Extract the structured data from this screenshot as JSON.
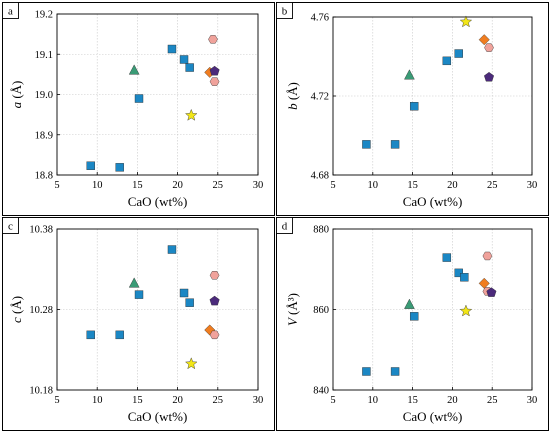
{
  "chart_data": [
    {
      "panel": "a",
      "type": "scatter",
      "xlabel": "CaO (wt%)",
      "ylabel_italic": "a",
      "ylabel_unit": "(Å)",
      "xlim": [
        5,
        30
      ],
      "ylim": [
        18.8,
        19.2
      ],
      "xticks": [
        5,
        10,
        15,
        20,
        25,
        30
      ],
      "yticks": [
        18.8,
        18.9,
        19.0,
        19.1,
        19.2
      ],
      "ytick_labels": [
        "18.8",
        "18.9",
        "19.0",
        "19.1",
        "19.2"
      ],
      "grid": true,
      "points": [
        {
          "x": 9.2,
          "y": 18.823,
          "marker": "square",
          "color": "#1b87c4"
        },
        {
          "x": 12.8,
          "y": 18.819,
          "marker": "square",
          "color": "#1b87c4"
        },
        {
          "x": 15.2,
          "y": 18.99,
          "marker": "square",
          "color": "#1b87c4"
        },
        {
          "x": 19.3,
          "y": 19.113,
          "marker": "square",
          "color": "#1b87c4"
        },
        {
          "x": 20.8,
          "y": 19.087,
          "marker": "square",
          "color": "#1b87c4"
        },
        {
          "x": 21.5,
          "y": 19.067,
          "marker": "square",
          "color": "#1b87c4"
        },
        {
          "x": 14.6,
          "y": 19.06,
          "marker": "triangle",
          "color": "#3a9b76"
        },
        {
          "x": 21.7,
          "y": 18.948,
          "marker": "star",
          "color": "#f2e617"
        },
        {
          "x": 24.0,
          "y": 19.055,
          "marker": "diamond",
          "color": "#f07d20"
        },
        {
          "x": 24.6,
          "y": 19.058,
          "marker": "pentagon",
          "color": "#4b2a7b"
        },
        {
          "x": 24.4,
          "y": 19.137,
          "marker": "hexagon",
          "color": "#f0a29b"
        },
        {
          "x": 24.6,
          "y": 19.032,
          "marker": "hexagon",
          "color": "#f0a29b"
        }
      ]
    },
    {
      "panel": "b",
      "type": "scatter",
      "xlabel": "CaO (wt%)",
      "ylabel_italic": "b",
      "ylabel_unit": "(Å)",
      "xlim": [
        5,
        30
      ],
      "ylim": [
        4.68,
        4.76
      ],
      "xticks": [
        5,
        10,
        15,
        20,
        25,
        30
      ],
      "yticks": [
        4.68,
        4.72,
        4.76
      ],
      "ytick_labels": [
        "4.68",
        "4.72",
        "4.76"
      ],
      "grid": true,
      "points": [
        {
          "x": 9.2,
          "y": 4.6955,
          "marker": "square",
          "color": "#1b87c4"
        },
        {
          "x": 12.8,
          "y": 4.6955,
          "marker": "square",
          "color": "#1b87c4"
        },
        {
          "x": 15.2,
          "y": 4.7148,
          "marker": "square",
          "color": "#1b87c4"
        },
        {
          "x": 19.3,
          "y": 4.7378,
          "marker": "square",
          "color": "#1b87c4"
        },
        {
          "x": 20.8,
          "y": 4.7415,
          "marker": "square",
          "color": "#1b87c4"
        },
        {
          "x": 14.6,
          "y": 4.7305,
          "marker": "triangle",
          "color": "#3a9b76"
        },
        {
          "x": 21.7,
          "y": 4.7575,
          "marker": "star",
          "color": "#f2e617"
        },
        {
          "x": 24.0,
          "y": 4.7485,
          "marker": "diamond",
          "color": "#f07d20"
        },
        {
          "x": 24.6,
          "y": 4.7445,
          "marker": "hexagon",
          "color": "#f0a29b"
        },
        {
          "x": 24.6,
          "y": 4.7295,
          "marker": "pentagon",
          "color": "#4b2a7b"
        }
      ]
    },
    {
      "panel": "c",
      "type": "scatter",
      "xlabel": "CaO (wt%)",
      "ylabel_italic": "c",
      "ylabel_unit": "(Å)",
      "xlim": [
        5,
        30
      ],
      "ylim": [
        10.18,
        10.38
      ],
      "xticks": [
        5,
        10,
        15,
        20,
        25,
        30
      ],
      "yticks": [
        10.18,
        10.28,
        10.38
      ],
      "ytick_labels": [
        "10.18",
        "10.28",
        "10.38"
      ],
      "grid": true,
      "points": [
        {
          "x": 9.2,
          "y": 10.2485,
          "marker": "square",
          "color": "#1b87c4"
        },
        {
          "x": 12.8,
          "y": 10.2485,
          "marker": "square",
          "color": "#1b87c4"
        },
        {
          "x": 15.2,
          "y": 10.2985,
          "marker": "square",
          "color": "#1b87c4"
        },
        {
          "x": 19.3,
          "y": 10.3545,
          "marker": "square",
          "color": "#1b87c4"
        },
        {
          "x": 20.8,
          "y": 10.3005,
          "marker": "square",
          "color": "#1b87c4"
        },
        {
          "x": 21.5,
          "y": 10.2885,
          "marker": "square",
          "color": "#1b87c4"
        },
        {
          "x": 14.6,
          "y": 10.3125,
          "marker": "triangle",
          "color": "#3a9b76"
        },
        {
          "x": 21.7,
          "y": 10.2125,
          "marker": "star",
          "color": "#f2e617"
        },
        {
          "x": 24.0,
          "y": 10.2545,
          "marker": "diamond",
          "color": "#f07d20"
        },
        {
          "x": 24.6,
          "y": 10.2905,
          "marker": "pentagon",
          "color": "#4b2a7b"
        },
        {
          "x": 24.6,
          "y": 10.3225,
          "marker": "hexagon",
          "color": "#f0a29b"
        },
        {
          "x": 24.6,
          "y": 10.2485,
          "marker": "hexagon",
          "color": "#f0a29b"
        }
      ]
    },
    {
      "panel": "d",
      "type": "scatter",
      "xlabel": "CaO (wt%)",
      "ylabel_italic": "V",
      "ylabel_unit": "(Å³)",
      "xlim": [
        5,
        30
      ],
      "ylim": [
        840,
        880
      ],
      "xticks": [
        5,
        10,
        15,
        20,
        25,
        30
      ],
      "yticks": [
        840,
        860,
        880
      ],
      "ytick_labels": [
        "840",
        "860",
        "880"
      ],
      "grid": true,
      "points": [
        {
          "x": 9.2,
          "y": 844.6,
          "marker": "square",
          "color": "#1b87c4"
        },
        {
          "x": 12.8,
          "y": 844.6,
          "marker": "square",
          "color": "#1b87c4"
        },
        {
          "x": 15.2,
          "y": 858.3,
          "marker": "square",
          "color": "#1b87c4"
        },
        {
          "x": 19.3,
          "y": 872.9,
          "marker": "square",
          "color": "#1b87c4"
        },
        {
          "x": 20.8,
          "y": 869.1,
          "marker": "square",
          "color": "#1b87c4"
        },
        {
          "x": 21.5,
          "y": 868.0,
          "marker": "square",
          "color": "#1b87c4"
        },
        {
          "x": 14.6,
          "y": 861.2,
          "marker": "triangle",
          "color": "#3a9b76"
        },
        {
          "x": 21.7,
          "y": 859.6,
          "marker": "star",
          "color": "#f2e617"
        },
        {
          "x": 24.0,
          "y": 866.5,
          "marker": "diamond",
          "color": "#f07d20"
        },
        {
          "x": 24.4,
          "y": 873.3,
          "marker": "hexagon",
          "color": "#f0a29b"
        },
        {
          "x": 24.4,
          "y": 864.5,
          "marker": "hexagon",
          "color": "#f0a29b"
        },
        {
          "x": 24.9,
          "y": 864.2,
          "marker": "pentagon",
          "color": "#4b2a7b"
        }
      ]
    }
  ]
}
